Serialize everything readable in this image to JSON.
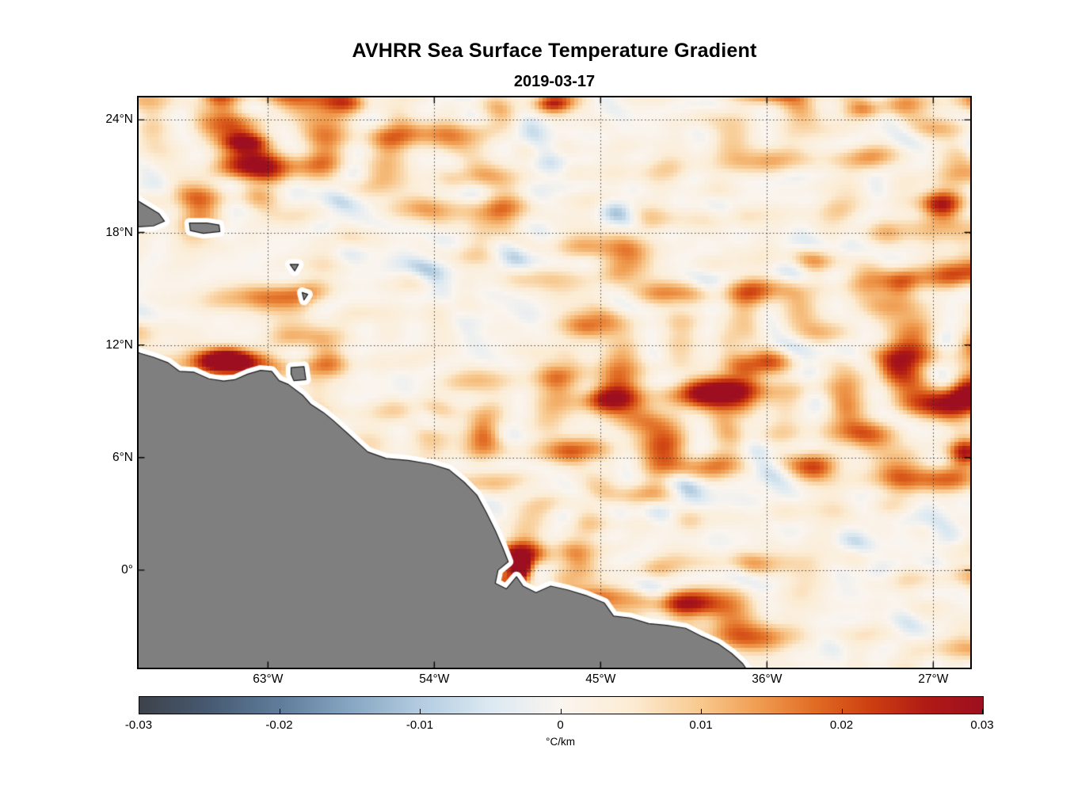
{
  "title": "AVHRR Sea Surface Temperature Gradient",
  "subtitle": "2019-03-17",
  "colorbar": {
    "label": "°C/km",
    "min": -0.03,
    "max": 0.03,
    "ticks": [
      -0.03,
      -0.02,
      -0.01,
      0,
      0.01,
      0.02,
      0.03
    ],
    "tick_labels": [
      "-0.03",
      "-0.02",
      "-0.01",
      "0",
      "0.01",
      "0.02",
      "0.03"
    ]
  },
  "chart_data": {
    "type": "heatmap",
    "title": "AVHRR Sea Surface Temperature Gradient",
    "subtitle": "2019-03-17",
    "variable": "sea surface temperature gradient magnitude",
    "units": "°C/km",
    "lon_range": [
      -70,
      -25
    ],
    "lat_range": [
      -5.2,
      25.2
    ],
    "lon_ticks": [
      -63,
      -54,
      -45,
      -36,
      -27
    ],
    "lon_tick_labels": [
      "63°W",
      "54°W",
      "45°W",
      "36°W",
      "27°W"
    ],
    "lat_ticks": [
      0,
      6,
      12,
      18,
      24
    ],
    "lat_tick_labels": [
      "0°",
      "6°N",
      "12°N",
      "18°N",
      "24°N"
    ],
    "value_range": [
      -0.03,
      0.03
    ],
    "grid": "dotted",
    "land_color": "#7f7f7f",
    "coast_nodata_color": "#ffffff",
    "colormap_stops": [
      {
        "v": -0.03,
        "c": "#3d424a"
      },
      {
        "v": -0.025,
        "c": "#475a72"
      },
      {
        "v": -0.02,
        "c": "#5f7d9b"
      },
      {
        "v": -0.015,
        "c": "#87a6c2"
      },
      {
        "v": -0.01,
        "c": "#b3cce0"
      },
      {
        "v": -0.005,
        "c": "#dce9f2"
      },
      {
        "v": 0.0,
        "c": "#faf5ef"
      },
      {
        "v": 0.005,
        "c": "#fcecd4"
      },
      {
        "v": 0.01,
        "c": "#f8c88d"
      },
      {
        "v": 0.014,
        "c": "#f09d51"
      },
      {
        "v": 0.018,
        "c": "#e16c24"
      },
      {
        "v": 0.022,
        "c": "#cd3f11"
      },
      {
        "v": 0.026,
        "c": "#b01a15"
      },
      {
        "v": 0.03,
        "c": "#9d0f20"
      }
    ],
    "land_polygons": [
      [
        [
          -70.6,
          11.85
        ],
        [
          -69.9,
          11.55
        ],
        [
          -69.2,
          11.35
        ],
        [
          -68.4,
          11.05
        ],
        [
          -67.8,
          10.6
        ],
        [
          -67.0,
          10.55
        ],
        [
          -66.2,
          10.2
        ],
        [
          -65.4,
          10.08
        ],
        [
          -64.8,
          10.15
        ],
        [
          -64.1,
          10.45
        ],
        [
          -63.4,
          10.65
        ],
        [
          -62.8,
          10.6
        ],
        [
          -62.4,
          10.1
        ],
        [
          -61.9,
          9.9
        ],
        [
          -61.1,
          9.3
        ],
        [
          -60.7,
          8.85
        ],
        [
          -60.0,
          8.4
        ],
        [
          -59.5,
          8.0
        ],
        [
          -58.6,
          7.2
        ],
        [
          -57.6,
          6.3
        ],
        [
          -56.6,
          5.95
        ],
        [
          -55.4,
          5.85
        ],
        [
          -54.2,
          5.65
        ],
        [
          -53.2,
          5.35
        ],
        [
          -52.4,
          4.7
        ],
        [
          -51.7,
          4.0
        ],
        [
          -51.2,
          3.1
        ],
        [
          -50.7,
          2.1
        ],
        [
          -50.3,
          1.2
        ],
        [
          -50.0,
          0.45
        ],
        [
          -50.55,
          0.0
        ],
        [
          -50.7,
          -0.7
        ],
        [
          -50.1,
          -1.0
        ],
        [
          -49.55,
          -0.35
        ],
        [
          -49.2,
          -0.85
        ],
        [
          -48.5,
          -1.2
        ],
        [
          -47.7,
          -0.85
        ],
        [
          -46.8,
          -1.05
        ],
        [
          -45.8,
          -1.35
        ],
        [
          -44.8,
          -1.75
        ],
        [
          -44.3,
          -2.45
        ],
        [
          -43.4,
          -2.55
        ],
        [
          -42.4,
          -2.85
        ],
        [
          -41.4,
          -2.95
        ],
        [
          -40.4,
          -3.1
        ],
        [
          -39.5,
          -3.55
        ],
        [
          -38.6,
          -3.95
        ],
        [
          -37.9,
          -4.45
        ],
        [
          -37.3,
          -5.0
        ],
        [
          -36.9,
          -5.6
        ],
        [
          -70.6,
          -5.6
        ]
      ],
      [
        [
          -70.6,
          20.1
        ],
        [
          -69.9,
          19.6
        ],
        [
          -68.9,
          19.0
        ],
        [
          -68.6,
          18.6
        ],
        [
          -69.2,
          18.35
        ],
        [
          -70.0,
          18.3
        ],
        [
          -70.6,
          18.35
        ]
      ],
      [
        [
          -67.25,
          18.5
        ],
        [
          -66.3,
          18.5
        ],
        [
          -65.65,
          18.4
        ],
        [
          -65.6,
          18.05
        ],
        [
          -66.5,
          17.95
        ],
        [
          -67.2,
          18.1
        ]
      ],
      [
        [
          -61.75,
          10.8
        ],
        [
          -61.05,
          10.85
        ],
        [
          -60.95,
          10.15
        ],
        [
          -61.6,
          10.1
        ],
        [
          -61.75,
          10.45
        ]
      ],
      [
        [
          -61.8,
          16.3
        ],
        [
          -61.35,
          16.3
        ],
        [
          -61.55,
          15.95
        ]
      ],
      [
        [
          -61.15,
          14.8
        ],
        [
          -60.85,
          14.7
        ],
        [
          -61.05,
          14.4
        ]
      ]
    ],
    "front_regions": [
      {
        "lon": -65.3,
        "lat": 11.25,
        "rx": 1.7,
        "ry": 0.6,
        "amp": 0.034
      },
      {
        "lon": -25.1,
        "lat": 9.4,
        "rx": 1.1,
        "ry": 0.9,
        "amp": 0.03
      },
      {
        "lon": -25.3,
        "lat": 6.2,
        "rx": 0.9,
        "ry": 0.7,
        "amp": 0.024
      },
      {
        "lon": -37.4,
        "lat": 9.9,
        "rx": 1.6,
        "ry": 1.3,
        "amp": 0.022
      },
      {
        "lon": -44.6,
        "lat": 9.1,
        "rx": 1.6,
        "ry": 0.8,
        "amp": 0.019
      },
      {
        "lon": -49.3,
        "lat": 0.1,
        "rx": 0.55,
        "ry": 0.65,
        "amp": 0.028
      },
      {
        "lon": -58.8,
        "lat": 25.0,
        "rx": 1.4,
        "ry": 0.6,
        "amp": 0.02
      },
      {
        "lon": -47.6,
        "lat": 24.9,
        "rx": 1.0,
        "ry": 0.5,
        "amp": 0.018
      },
      {
        "lon": -30.6,
        "lat": 24.6,
        "rx": 1.2,
        "ry": 0.6,
        "amp": 0.018
      },
      {
        "lon": -26.6,
        "lat": 19.4,
        "rx": 1.2,
        "ry": 1.0,
        "amp": 0.021
      },
      {
        "lon": -28.6,
        "lat": 15.4,
        "rx": 1.0,
        "ry": 0.8,
        "amp": 0.016
      },
      {
        "lon": -40.6,
        "lat": -1.9,
        "rx": 2.2,
        "ry": 0.6,
        "amp": 0.016
      },
      {
        "lon": -51.4,
        "lat": 7.4,
        "rx": 1.1,
        "ry": 1.2,
        "amp": 0.018
      },
      {
        "lon": -64.2,
        "lat": 22.8,
        "rx": 1.2,
        "ry": 0.45,
        "amp": 0.018
      },
      {
        "lon": -33.3,
        "lat": 5.3,
        "rx": 1.4,
        "ry": 0.8,
        "amp": 0.016
      },
      {
        "lon": -29.4,
        "lat": 10.8,
        "rx": 1.1,
        "ry": 0.8,
        "amp": 0.016
      }
    ],
    "calm_regions": [
      {
        "lon": -67.5,
        "lat": 15.3,
        "rx": 3.8,
        "ry": 2.4,
        "f": 0.8
      },
      {
        "lon": -63.5,
        "lat": 16.8,
        "rx": 2.6,
        "ry": 1.8,
        "f": 0.55
      },
      {
        "lon": -69.0,
        "lat": 21.5,
        "rx": 2.5,
        "ry": 2.0,
        "f": 0.5
      }
    ],
    "render_seed": 20190317
  }
}
